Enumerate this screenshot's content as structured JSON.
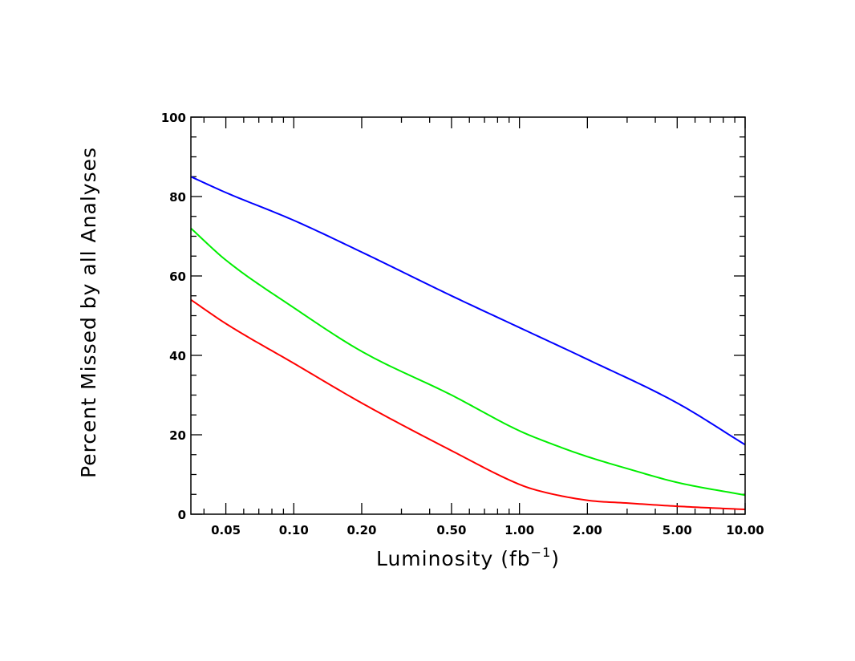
{
  "chart_data": {
    "type": "line",
    "title": "",
    "xlabel": "Luminosity (fb",
    "xlabel_sup": "−1",
    "xlabel_close": ")",
    "ylabel": "Percent Missed by all Analyses",
    "xscale": "log",
    "xlim": [
      0.035,
      10.0
    ],
    "ylim": [
      0,
      100
    ],
    "x_ticks": [
      {
        "value": 0.05,
        "label": "0.05"
      },
      {
        "value": 0.1,
        "label": "0.10"
      },
      {
        "value": 0.2,
        "label": "0.20"
      },
      {
        "value": 0.5,
        "label": "0.50"
      },
      {
        "value": 1.0,
        "label": "1.00"
      },
      {
        "value": 2.0,
        "label": "2.00"
      },
      {
        "value": 5.0,
        "label": "5.00"
      },
      {
        "value": 10.0,
        "label": "10.00"
      }
    ],
    "y_ticks": [
      {
        "value": 0,
        "label": "0"
      },
      {
        "value": 20,
        "label": "20"
      },
      {
        "value": 40,
        "label": "40"
      },
      {
        "value": 60,
        "label": "60"
      },
      {
        "value": 80,
        "label": "80"
      },
      {
        "value": 100,
        "label": "100"
      }
    ],
    "grid": false,
    "legend": "none",
    "series": [
      {
        "color": "#0000ff",
        "x": [
          0.035,
          0.05,
          0.1,
          0.2,
          0.5,
          1.0,
          2.0,
          5.0,
          10.0
        ],
        "y": [
          85,
          81,
          74,
          66,
          55,
          47,
          39,
          28,
          17.5
        ]
      },
      {
        "color": "#00ee00",
        "x": [
          0.035,
          0.05,
          0.1,
          0.2,
          0.5,
          1.0,
          1.5,
          2.0,
          3.0,
          5.0,
          10.0
        ],
        "y": [
          72,
          64,
          52,
          41,
          30,
          21,
          17,
          14.5,
          11.5,
          8,
          4.8
        ]
      },
      {
        "color": "#ff0000",
        "x": [
          0.035,
          0.05,
          0.1,
          0.2,
          0.5,
          1.0,
          1.2,
          2.0,
          3.0,
          5.0,
          10.0
        ],
        "y": [
          54,
          48,
          38,
          28,
          16,
          7.5,
          6,
          3.5,
          2.8,
          2,
          1.2
        ]
      }
    ]
  }
}
